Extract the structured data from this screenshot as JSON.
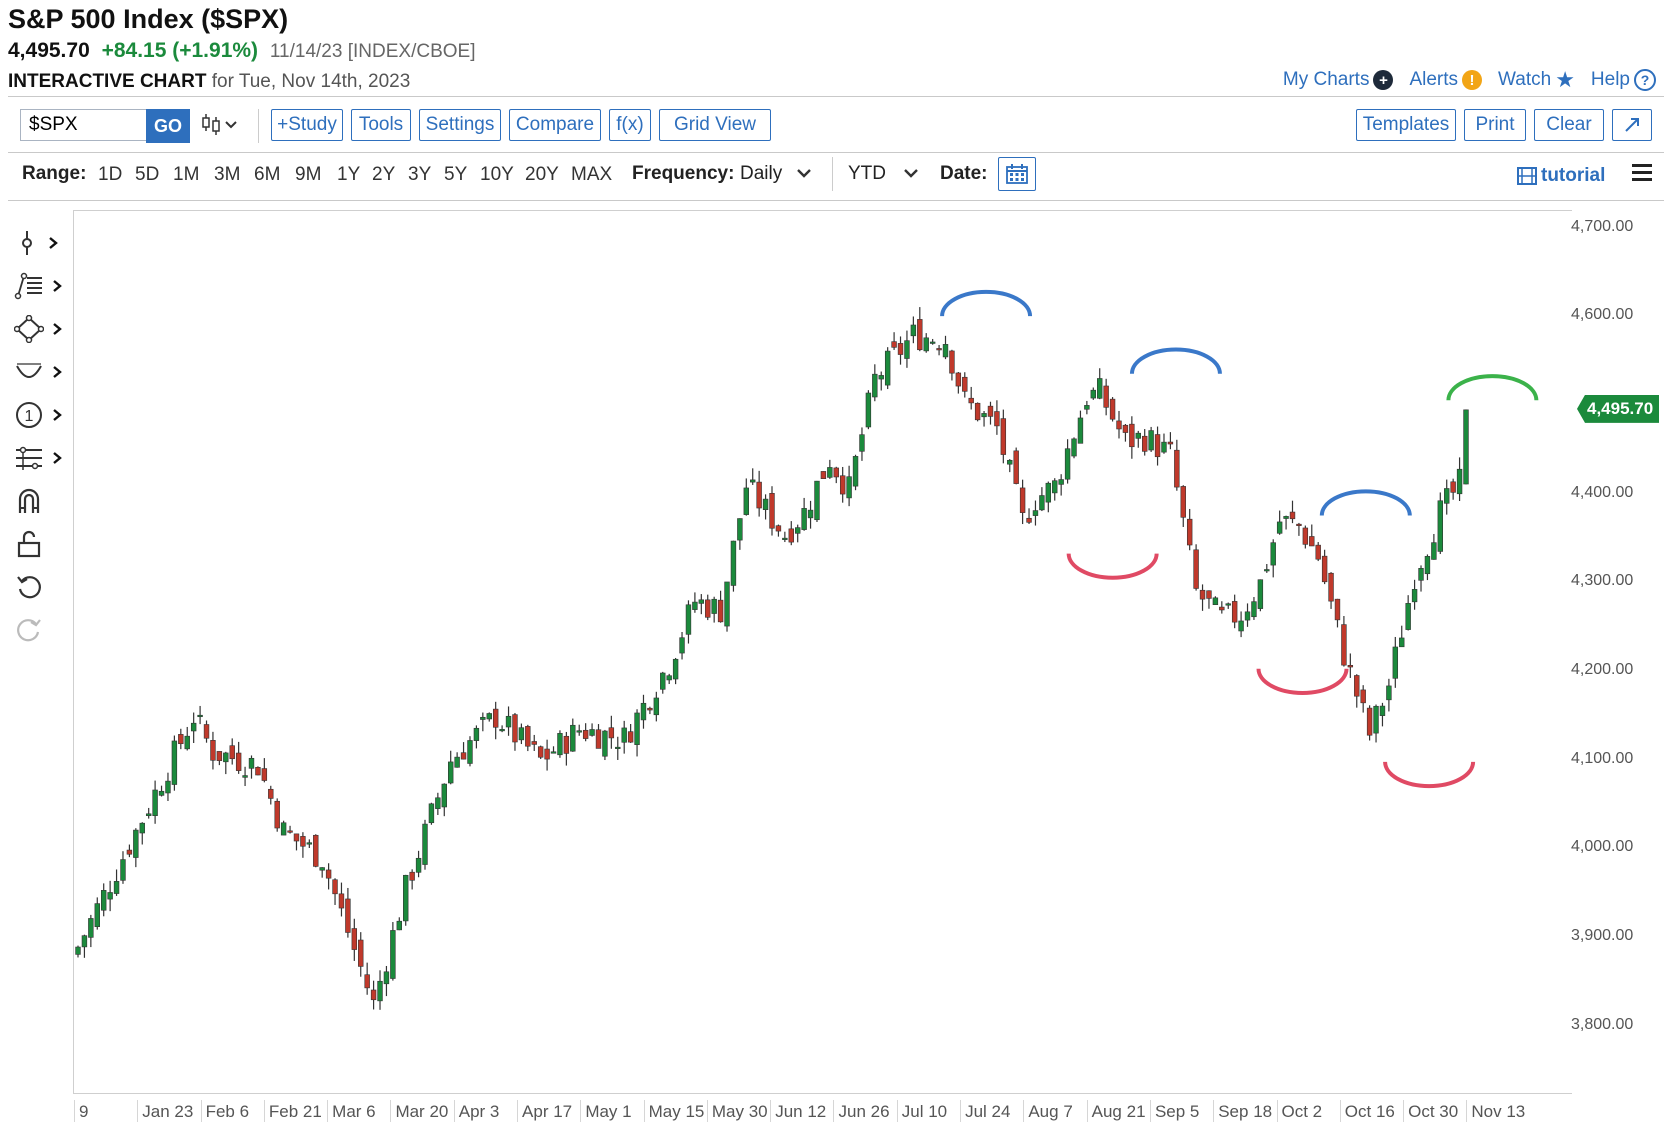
{
  "header": {
    "title": "S&P 500 Index ($SPX)",
    "price": "4,495.70",
    "change": "+84.15 (+1.91%)",
    "meta": "11/14/23 [INDEX/CBOE]",
    "subtitle_bold": "INTERACTIVE CHART",
    "subtitle_rest": "for Tue, Nov 14th, 2023"
  },
  "toplinks": {
    "my_charts": "My Charts",
    "alerts": "Alerts",
    "watch": "Watch",
    "help": "Help"
  },
  "toolbar": {
    "symbol_value": "$SPX",
    "go": "GO",
    "study": "+Study",
    "tools": "Tools",
    "settings": "Settings",
    "compare": "Compare",
    "fx": "f(x)",
    "grid_view": "Grid View",
    "templates": "Templates",
    "print": "Print",
    "clear": "Clear"
  },
  "rangebar": {
    "range_label": "Range:",
    "ranges": [
      "1D",
      "5D",
      "1M",
      "3M",
      "6M",
      "9M",
      "1Y",
      "2Y",
      "3Y",
      "5Y",
      "10Y",
      "20Y",
      "MAX"
    ],
    "frequency_label": "Frequency:",
    "frequency_value": "Daily",
    "period_value": "YTD",
    "date_label": "Date:",
    "tutorial": "tutorial"
  },
  "colors": {
    "up": "#1b8a3c",
    "down": "#c0392b",
    "accent": "#2e6fbd",
    "arc_top": "#3a78c9",
    "arc_bottom": "#e04a64",
    "arc_green": "#3bb24a"
  },
  "icons": [
    "crosshair-icon",
    "fib-lines-icon",
    "shapes-icon",
    "arc-icon",
    "number-marker-icon",
    "measure-icon",
    "magnet-icon",
    "unlock-icon",
    "undo-icon",
    "redo-icon",
    "calendar-icon",
    "hamburger-icon",
    "expand-icon",
    "film-icon"
  ],
  "chart_data": {
    "type": "candlestick",
    "title": "S&P 500 Index ($SPX)",
    "y_ticks": [
      4700,
      4600,
      4400,
      4300,
      4200,
      4100,
      4000,
      3900,
      3800
    ],
    "y_tick_labels": [
      "4,700.00",
      "4,600.00",
      "4,400.00",
      "4,300.00",
      "4,200.00",
      "4,100.00",
      "4,000.00",
      "3,900.00",
      "3,800.00"
    ],
    "x_tick_labels": [
      "9",
      "Jan 23",
      "Feb 6",
      "Feb 21",
      "Mar 6",
      "Mar 20",
      "Apr 3",
      "Apr 17",
      "May 1",
      "May 15",
      "May 30",
      "Jun 12",
      "Jun 26",
      "Jul 10",
      "Jul 24",
      "Aug 7",
      "Aug 21",
      "Sep 5",
      "Sep 18",
      "Oct 2",
      "Oct 16",
      "Oct 30",
      "Nov 13"
    ],
    "last_price_label": "4,495.70",
    "last_price": 4495.7,
    "close_anchors": [
      {
        "t": 0,
        "c": 3890
      },
      {
        "t": 9,
        "c": 4020
      },
      {
        "t": 18,
        "c": 4150
      },
      {
        "t": 21,
        "c": 4110
      },
      {
        "t": 28,
        "c": 4095
      },
      {
        "t": 32,
        "c": 4020
      },
      {
        "t": 38,
        "c": 3990
      },
      {
        "t": 46,
        "c": 3825
      },
      {
        "t": 51,
        "c": 3955
      },
      {
        "t": 58,
        "c": 4100
      },
      {
        "t": 65,
        "c": 4150
      },
      {
        "t": 72,
        "c": 4100
      },
      {
        "t": 78,
        "c": 4135
      },
      {
        "t": 85,
        "c": 4125
      },
      {
        "t": 92,
        "c": 4210
      },
      {
        "t": 96,
        "c": 4280
      },
      {
        "t": 100,
        "c": 4270
      },
      {
        "t": 104,
        "c": 4410
      },
      {
        "t": 110,
        "c": 4355
      },
      {
        "t": 113,
        "c": 4380
      },
      {
        "t": 117,
        "c": 4440
      },
      {
        "t": 120,
        "c": 4405
      },
      {
        "t": 124,
        "c": 4530
      },
      {
        "t": 130,
        "c": 4580
      },
      {
        "t": 135,
        "c": 4575
      },
      {
        "t": 138,
        "c": 4505
      },
      {
        "t": 143,
        "c": 4475
      },
      {
        "t": 147,
        "c": 4370
      },
      {
        "t": 149,
        "c": 4395
      },
      {
        "t": 152,
        "c": 4410
      },
      {
        "t": 157,
        "c": 4510
      },
      {
        "t": 159,
        "c": 4515
      },
      {
        "t": 163,
        "c": 4460
      },
      {
        "t": 166,
        "c": 4465
      },
      {
        "t": 170,
        "c": 4445
      },
      {
        "t": 174,
        "c": 4290
      },
      {
        "t": 178,
        "c": 4260
      },
      {
        "t": 181,
        "c": 4265
      },
      {
        "t": 184,
        "c": 4300
      },
      {
        "t": 187,
        "c": 4370
      },
      {
        "t": 190,
        "c": 4365
      },
      {
        "t": 193,
        "c": 4330
      },
      {
        "t": 197,
        "c": 4220
      },
      {
        "t": 201,
        "c": 4130
      },
      {
        "t": 204,
        "c": 4185
      },
      {
        "t": 208,
        "c": 4310
      },
      {
        "t": 212,
        "c": 4380
      },
      {
        "t": 215,
        "c": 4412
      },
      {
        "t": 216,
        "c": 4496
      }
    ],
    "annotations": [
      {
        "type": "arc_top",
        "near": "Jul 24",
        "price": 4615,
        "color": "blue"
      },
      {
        "type": "arc_top",
        "near": "Sep 5",
        "price": 4550,
        "color": "blue"
      },
      {
        "type": "arc_top",
        "near": "Oct 16",
        "price": 4390,
        "color": "blue"
      },
      {
        "type": "arc_top",
        "near": "Nov 13",
        "price": 4520,
        "color": "green"
      },
      {
        "type": "arc_bottom",
        "near": "Aug 21",
        "price": 4320,
        "color": "red"
      },
      {
        "type": "arc_bottom",
        "near": "Oct 2",
        "price": 4190,
        "color": "red"
      },
      {
        "type": "arc_bottom",
        "near": "Oct 30",
        "price": 4085,
        "color": "red"
      }
    ]
  }
}
